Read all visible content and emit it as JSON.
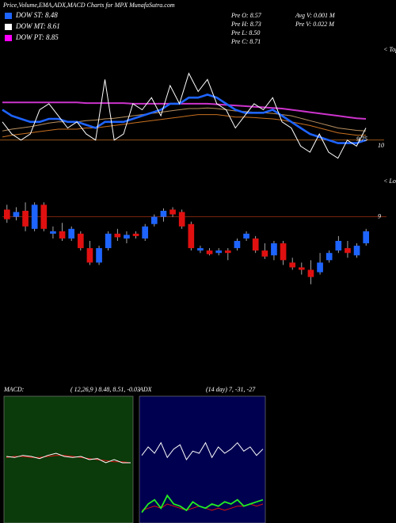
{
  "header": {
    "title": "Price,Volume,EMA,ADX,MACD Charts for MPX  MunafaSutra.com",
    "legend": [
      {
        "label": "DOW ST: 8.48",
        "color": "#1e64ff"
      },
      {
        "label": "DOW MT: 8.61",
        "color": "#ffffff"
      },
      {
        "label": "DOW PT: 8.85",
        "color": "#ff00ff"
      }
    ],
    "info": [
      [
        "Pre  O: 8.57",
        "Avg V: 0.001  M"
      ],
      [
        "Pre  H: 8.73",
        "Pre  V: 0.022  M"
      ],
      [
        "Pre  L: 8.50"
      ],
      [
        "Pre  C: 8.71"
      ]
    ]
  },
  "chart_data": [
    {
      "type": "line",
      "ylim": [
        9.5,
        11.5
      ],
      "hline": 10,
      "hline_color": "#c87020",
      "annotations": [
        "< Tops",
        "9.75",
        "10"
      ],
      "series": [
        {
          "color": "#b89060",
          "values": [
            10.15,
            10.18,
            10.2,
            10.22,
            10.25,
            10.28,
            10.3,
            10.3,
            10.3,
            10.32,
            10.33,
            10.35,
            10.36,
            10.38,
            10.4,
            10.42,
            10.44,
            10.46,
            10.48,
            10.5,
            10.52,
            10.52,
            10.53,
            10.52,
            10.5,
            10.48,
            10.47,
            10.46,
            10.45,
            10.44,
            10.42,
            10.4,
            10.36,
            10.32,
            10.28,
            10.24,
            10.2,
            10.18,
            10.16,
            10.15
          ]
        },
        {
          "color": "#c87020",
          "values": [
            10.05,
            10.08,
            10.1,
            10.12,
            10.14,
            10.16,
            10.18,
            10.18,
            10.18,
            10.2,
            10.2,
            10.22,
            10.24,
            10.26,
            10.28,
            10.3,
            10.32,
            10.34,
            10.36,
            10.38,
            10.4,
            10.42,
            10.42,
            10.42,
            10.4,
            10.38,
            10.38,
            10.37,
            10.36,
            10.35,
            10.33,
            10.3,
            10.27,
            10.24,
            10.2,
            10.16,
            10.12,
            10.1,
            10.08,
            10.08
          ]
        },
        {
          "color": "#cc33cc",
          "values": [
            10.62,
            10.62,
            10.62,
            10.62,
            10.62,
            10.62,
            10.62,
            10.62,
            10.62,
            10.61,
            10.61,
            10.61,
            10.61,
            10.61,
            10.6,
            10.6,
            10.6,
            10.6,
            10.6,
            10.6,
            10.6,
            10.6,
            10.6,
            10.59,
            10.58,
            10.57,
            10.56,
            10.55,
            10.54,
            10.53,
            10.52,
            10.5,
            10.48,
            10.46,
            10.44,
            10.42,
            10.4,
            10.38,
            10.36,
            10.35
          ]
        },
        {
          "color": "#1e64ff",
          "values": [
            10.5,
            10.4,
            10.35,
            10.3,
            10.3,
            10.35,
            10.35,
            10.3,
            10.3,
            10.25,
            10.2,
            10.3,
            10.3,
            10.3,
            10.35,
            10.4,
            10.45,
            10.5,
            10.6,
            10.6,
            10.7,
            10.7,
            10.75,
            10.7,
            10.6,
            10.5,
            10.45,
            10.45,
            10.45,
            10.5,
            10.4,
            10.3,
            10.2,
            10.1,
            10.05,
            10.0,
            9.95,
            9.95,
            9.95,
            10.0
          ]
        },
        {
          "color": "#ffffff",
          "values": [
            10.3,
            10.1,
            10.0,
            10.1,
            10.5,
            10.6,
            10.4,
            10.2,
            10.3,
            10.1,
            10.0,
            11.0,
            10.0,
            10.1,
            10.6,
            10.5,
            10.7,
            10.4,
            10.9,
            10.6,
            11.1,
            10.8,
            11.0,
            10.6,
            10.5,
            10.2,
            10.4,
            10.6,
            10.5,
            10.7,
            10.3,
            10.2,
            9.9,
            9.8,
            10.1,
            9.8,
            9.7,
            10.0,
            9.9,
            10.2
          ]
        }
      ]
    },
    {
      "type": "candlestick",
      "ylim": [
        8.3,
        9.3
      ],
      "hline": 9,
      "hline_color": "#a03010",
      "annotations": [
        "< Lows",
        "9"
      ],
      "up_color": "#1e64ff",
      "down_color": "#e01010",
      "open": [
        9.06,
        9.0,
        9.05,
        8.9,
        9.1,
        8.86,
        8.88,
        8.82,
        8.86,
        8.74,
        8.62,
        8.74,
        8.86,
        8.82,
        8.86,
        8.82,
        8.94,
        9.0,
        9.06,
        9.04,
        8.94,
        8.72,
        8.72,
        8.7,
        8.72,
        8.74,
        8.82,
        8.82,
        8.72,
        8.68,
        8.78,
        8.62,
        8.58,
        8.56,
        8.54,
        8.64,
        8.72,
        8.74,
        8.68,
        8.78
      ],
      "high": [
        9.1,
        9.08,
        9.12,
        9.12,
        9.12,
        8.92,
        8.95,
        8.92,
        8.88,
        8.8,
        8.76,
        8.88,
        8.9,
        8.88,
        8.88,
        8.94,
        9.02,
        9.07,
        9.08,
        9.06,
        8.96,
        8.76,
        8.74,
        8.74,
        8.74,
        8.82,
        8.88,
        8.84,
        8.78,
        8.8,
        8.8,
        8.66,
        8.62,
        8.64,
        8.7,
        8.72,
        8.84,
        8.8,
        8.78,
        8.9
      ],
      "low": [
        8.95,
        8.97,
        8.88,
        8.88,
        8.88,
        8.82,
        8.8,
        8.8,
        8.72,
        8.6,
        8.6,
        8.72,
        8.8,
        8.78,
        8.82,
        8.8,
        8.92,
        8.96,
        9.0,
        8.9,
        8.72,
        8.7,
        8.68,
        8.68,
        8.64,
        8.72,
        8.8,
        8.7,
        8.65,
        8.64,
        8.6,
        8.56,
        8.52,
        8.44,
        8.52,
        8.62,
        8.7,
        8.66,
        8.66,
        8.76
      ],
      "close": [
        8.98,
        9.04,
        8.92,
        9.1,
        8.9,
        8.88,
        8.82,
        8.9,
        8.74,
        8.62,
        8.74,
        8.86,
        8.83,
        8.85,
        8.84,
        8.92,
        9.0,
        9.05,
        9.02,
        8.92,
        8.74,
        8.74,
        8.69,
        8.72,
        8.7,
        8.8,
        8.86,
        8.72,
        8.67,
        8.78,
        8.64,
        8.58,
        8.56,
        8.5,
        8.62,
        8.7,
        8.8,
        8.7,
        8.76,
        8.88
      ]
    },
    {
      "type": "line",
      "title": "MACD:",
      "subtitle": "( 12,26,9 ) 8.48, 8.51, -0.03",
      "background": "#0b3a0b",
      "ylim": [
        -0.6,
        0.6
      ],
      "series": [
        {
          "color": "#e01010",
          "values": [
            0.02,
            0.03,
            0.03,
            0.02,
            0.02,
            0.03,
            0.04,
            0.04,
            0.03,
            0.02,
            0.01,
            0.0,
            -0.01,
            -0.02,
            -0.02,
            -0.03
          ]
        },
        {
          "color": "#ffffff",
          "values": [
            0.03,
            0.02,
            0.04,
            0.03,
            0.01,
            0.04,
            0.06,
            0.03,
            0.02,
            0.03,
            0.0,
            0.01,
            -0.03,
            0.0,
            -0.03,
            -0.03
          ]
        }
      ]
    },
    {
      "type": "line",
      "title": "ADX",
      "subtitle": "(14  day) 7, -31, -27",
      "background": "#000050",
      "ylim": [
        0,
        60
      ],
      "series": [
        {
          "color": "#e01010",
          "values": [
            6,
            7,
            8,
            7,
            9,
            8,
            7,
            6,
            7,
            8,
            7,
            6,
            7,
            6,
            7,
            8,
            8,
            9,
            8,
            9
          ]
        },
        {
          "color": "#ffffff",
          "values": [
            32,
            36,
            33,
            38,
            31,
            35,
            37,
            30,
            34,
            33,
            38,
            31,
            36,
            33,
            35,
            38,
            34,
            36,
            32,
            35
          ]
        },
        {
          "color": "#22ee22",
          "values": [
            5,
            9,
            11,
            7,
            13,
            9,
            8,
            6,
            10,
            8,
            7,
            9,
            8,
            10,
            9,
            11,
            8,
            9,
            10,
            11
          ]
        }
      ]
    }
  ]
}
